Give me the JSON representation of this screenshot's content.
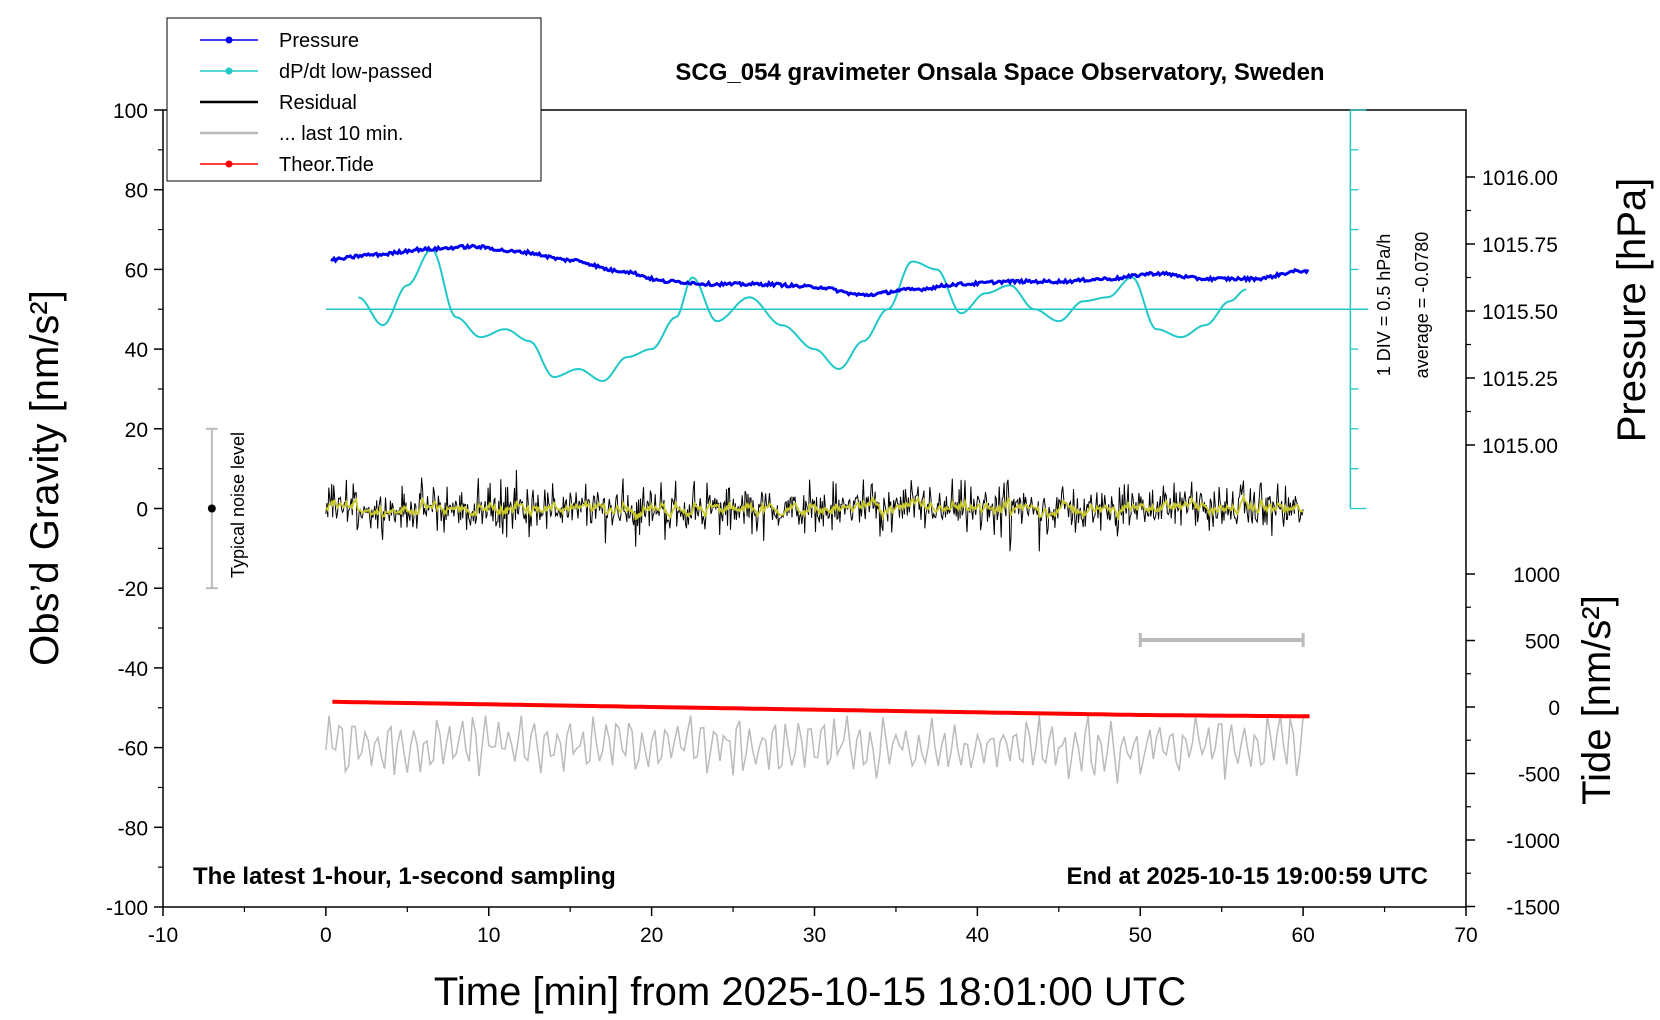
{
  "chart_data": {
    "type": "line",
    "title": "SCG_054 gravimeter Onsala Space Observatory, Sweden",
    "xlabel": "Time [min] from 2025-10-15 18:01:00 UTC",
    "ylabel": "Obs’d Gravity [nm/s²]",
    "ylabel_right_pressure": "Pressure [hPa]",
    "ylabel_right_tide": "Tide [nm/s²]",
    "xlim": [
      -10,
      70
    ],
    "ylim": [
      -100,
      100
    ],
    "x_ticks": [
      "-10",
      "0",
      "10",
      "20",
      "30",
      "40",
      "50",
      "60",
      "70"
    ],
    "y_ticks": [
      "100",
      "80",
      "60",
      "40",
      "20",
      "0",
      "-20",
      "-40",
      "-60",
      "-80",
      "-100"
    ],
    "pressure_ticks": [
      "1016.00",
      "1015.75",
      "1015.50",
      "1015.25",
      "1015.00"
    ],
    "tide_ticks": [
      "1000",
      "500",
      "0",
      "-500",
      "-1000",
      "-1500"
    ],
    "annotation_left": "The latest 1-hour, 1-second sampling",
    "annotation_right": "End at 2025-10-15 19:00:59 UTC",
    "noise_label": "Typical noise level",
    "div_label": "1 DIV = 0.5 hPa/h",
    "average_label": "average = -0.0780",
    "legend": {
      "placement": "top-left",
      "items": [
        {
          "label": "Pressure",
          "color": "#0000ee"
        },
        {
          "label": "dP/dt low-passed",
          "color": "#22c8c8"
        },
        {
          "label": "Residual",
          "color": "#000000"
        },
        {
          "label": "... last 10 min.",
          "color": "#bbbbbb"
        },
        {
          "label": "Theor.Tide",
          "color": "#ff0000"
        }
      ]
    },
    "series": [
      {
        "name": "Pressure",
        "color": "#0000ee",
        "x": [
          0,
          3,
          6,
          9,
          12,
          15,
          18,
          21,
          24,
          27,
          30,
          33,
          36,
          39,
          42,
          45,
          48,
          51,
          54,
          57,
          60
        ],
        "y": [
          1015.69,
          1015.71,
          1015.73,
          1015.74,
          1015.72,
          1015.69,
          1015.65,
          1015.61,
          1015.6,
          1015.6,
          1015.59,
          1015.56,
          1015.58,
          1015.6,
          1015.61,
          1015.61,
          1015.62,
          1015.64,
          1015.62,
          1015.62,
          1015.65
        ]
      },
      {
        "name": "dP/dt low-passed",
        "color": "#22c8c8",
        "x": [
          2,
          3.5,
          5,
          6.5,
          8,
          9.5,
          11,
          12.5,
          14,
          15.5,
          17,
          18.5,
          20,
          21.5,
          22.5,
          24,
          26,
          28,
          30,
          31.5,
          33,
          34.5,
          36,
          37.5,
          39,
          40.5,
          42,
          43.5,
          45,
          46.5,
          48,
          49.5,
          51,
          52.5,
          54,
          55.5,
          56.5
        ],
        "y": [
          53,
          46,
          56,
          65,
          48,
          43,
          45,
          42,
          33,
          35,
          32,
          38,
          40,
          48,
          58,
          47,
          53,
          46,
          40,
          35,
          42,
          50,
          62,
          60,
          49,
          54,
          56,
          50,
          47,
          52,
          53,
          58,
          45,
          43,
          46,
          52,
          55
        ]
      },
      {
        "name": "Residual",
        "color": "#000000",
        "x_range": [
          0,
          60
        ],
        "y_range": [
          -13,
          11
        ]
      },
      {
        "name": "... last 10 min.",
        "color": "#bbbbbb",
        "x_range": [
          0,
          60
        ],
        "y_range": [
          -71,
          -52
        ]
      },
      {
        "name": "Theor.Tide",
        "color": "#ff0000",
        "x": [
          0,
          10,
          20,
          30,
          40,
          50,
          60
        ],
        "y": [
          40,
          20,
          0,
          -20,
          -40,
          -60,
          -70
        ]
      }
    ],
    "bar_10min": {
      "x": [
        50,
        60
      ]
    }
  }
}
